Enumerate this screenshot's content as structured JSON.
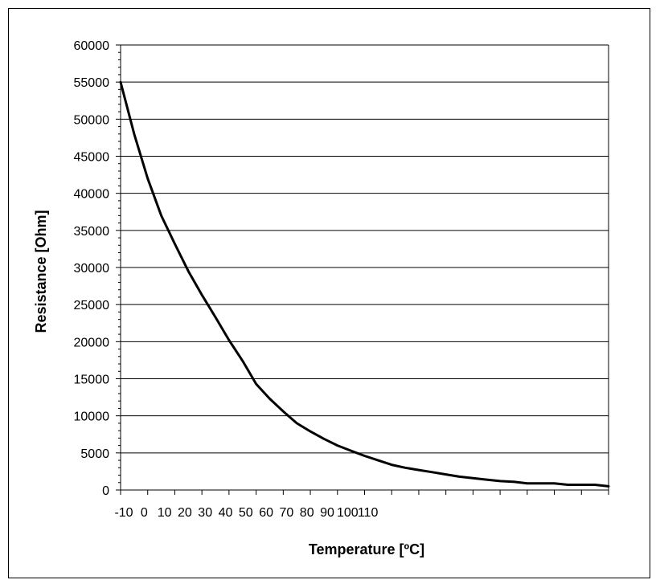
{
  "chart_data": {
    "type": "line",
    "title": "",
    "xlabel": "Temperature [ºC]",
    "ylabel": "Resistance [Ohm]",
    "ylim": [
      0,
      60000
    ],
    "yticks": [
      "60000",
      "55000",
      "50000",
      "45000",
      "40000",
      "35000",
      "30000",
      "25000",
      "20000",
      "15000",
      "10000",
      "5000",
      "0"
    ],
    "xticks": [
      "-10",
      "0",
      "10",
      "20",
      "30",
      "40",
      "50",
      "60",
      "70",
      "80",
      "90",
      "100",
      "110"
    ],
    "grid": "horizontal",
    "line_color": "#000000",
    "series": [
      {
        "points": [
          [
            -10,
            55000
          ],
          [
            -5,
            48000
          ],
          [
            0,
            42000
          ],
          [
            5,
            37000
          ],
          [
            10,
            33200
          ],
          [
            15,
            29500
          ],
          [
            20,
            26300
          ],
          [
            25,
            23300
          ],
          [
            30,
            20200
          ],
          [
            35,
            17400
          ],
          [
            40,
            14300
          ],
          [
            45,
            12300
          ],
          [
            50,
            10600
          ],
          [
            55,
            9000
          ],
          [
            60,
            7900
          ],
          [
            65,
            6900
          ],
          [
            70,
            6000
          ],
          [
            75,
            5300
          ],
          [
            80,
            4600
          ],
          [
            85,
            4000
          ],
          [
            90,
            3400
          ],
          [
            95,
            3000
          ],
          [
            100,
            2700
          ],
          [
            105,
            2400
          ],
          [
            110,
            2100
          ],
          [
            115,
            1800
          ],
          [
            120,
            1600
          ],
          [
            125,
            1400
          ],
          [
            130,
            1200
          ],
          [
            135,
            1100
          ],
          [
            140,
            900
          ],
          [
            145,
            900
          ],
          [
            150,
            900
          ],
          [
            155,
            700
          ],
          [
            160,
            700
          ],
          [
            165,
            700
          ],
          [
            170,
            500
          ]
        ]
      }
    ]
  }
}
